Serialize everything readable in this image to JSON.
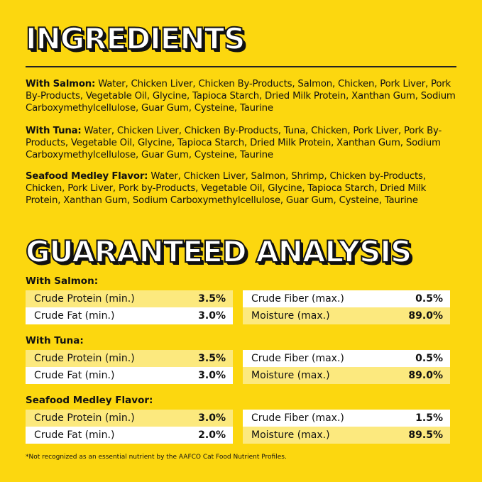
{
  "ingredients": {
    "title": "INGREDIENTS",
    "items": [
      {
        "label": "With Salmon:",
        "text": " Water, Chicken Liver, Chicken By-Products, Salmon, Chicken, Pork Liver, Pork By-Products, Vegetable Oil, Glycine, Tapioca Starch, Dried Milk Protein, Xanthan Gum, Sodium Carboxymethylcellulose, Guar Gum, Cysteine, Taurine"
      },
      {
        "label": "With Tuna:",
        "text": " Water, Chicken Liver, Chicken By-Products, Tuna, Chicken, Pork Liver, Pork By-Products, Vegetable Oil, Glycine, Tapioca Starch, Dried Milk Protein, Xanthan Gum, Sodium Carboxymethylcellulose, Guar Gum, Cysteine, Taurine"
      },
      {
        "label": "Seafood Medley Flavor:",
        "text": " Water, Chicken Liver, Salmon, Shrimp, Chicken by-Products, Chicken, Pork Liver, Pork by-Products, Vegetable Oil, Glycine, Tapioca Starch, Dried Milk Protein, Xanthan Gum, Sodium Carboxymethylcellulose, Guar Gum, Cysteine, Taurine"
      }
    ]
  },
  "analysis": {
    "title": "GUARANTEED ANALYSIS",
    "groups": [
      {
        "label": "With Salmon:",
        "left": [
          [
            "Crude Protein (min.)",
            "3.5%"
          ],
          [
            "Crude Fat (min.)",
            "3.0%"
          ]
        ],
        "right": [
          [
            "Crude Fiber (max.)",
            "0.5%"
          ],
          [
            "Moisture (max.)",
            "89.0%"
          ]
        ]
      },
      {
        "label": "With Tuna:",
        "left": [
          [
            "Crude Protein (min.)",
            "3.5%"
          ],
          [
            "Crude Fat (min.)",
            "3.0%"
          ]
        ],
        "right": [
          [
            "Crude Fiber (max.)",
            "0.5%"
          ],
          [
            "Moisture (max.)",
            "89.0%"
          ]
        ]
      },
      {
        "label": "Seafood Medley Flavor:",
        "left": [
          [
            "Crude Protein (min.)",
            "3.0%"
          ],
          [
            "Crude Fat (min.)",
            "2.0%"
          ]
        ],
        "right": [
          [
            "Crude Fiber (max.)",
            "1.5%"
          ],
          [
            "Moisture (max.)",
            "89.5%"
          ]
        ]
      }
    ]
  },
  "footnote": "*Not recognized as an essential nutrient by the AAFCO Cat Food Nutrient Profiles.",
  "colors": {
    "background": "#fcd70f",
    "row_light": "#fce97e",
    "row_white": "#ffffff"
  }
}
